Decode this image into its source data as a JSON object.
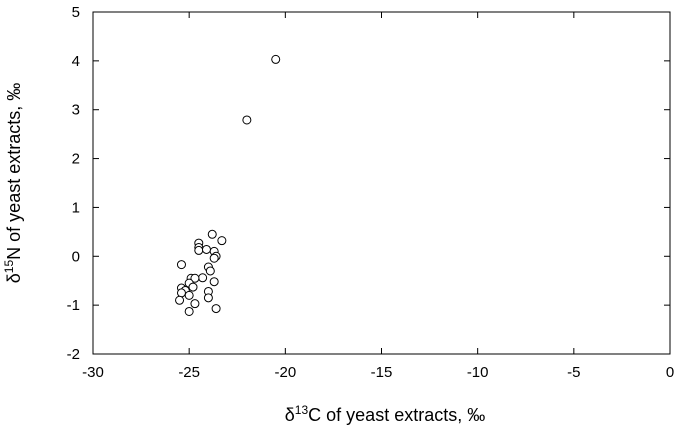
{
  "chart_data": {
    "type": "scatter",
    "xlabel": {
      "pre": "δ",
      "sup": "13",
      "post": "C of yeast extracts, ‰"
    },
    "ylabel": {
      "pre": "δ",
      "sup": "15",
      "post": "N of yeast extracts, ‰"
    },
    "xlim": [
      -30,
      0
    ],
    "ylim": [
      -2,
      5
    ],
    "xticks": [
      -30,
      -25,
      -20,
      -15,
      -10,
      -5,
      0
    ],
    "yticks": [
      -2,
      -1,
      0,
      1,
      2,
      3,
      4,
      5
    ],
    "grid": false,
    "marker": "open-circle",
    "points": [
      {
        "x": -20.5,
        "y": 4.03
      },
      {
        "x": -22.0,
        "y": 2.79
      },
      {
        "x": -23.8,
        "y": 0.45
      },
      {
        "x": -23.3,
        "y": 0.32
      },
      {
        "x": -24.5,
        "y": 0.27
      },
      {
        "x": -24.5,
        "y": 0.18
      },
      {
        "x": -24.5,
        "y": 0.12
      },
      {
        "x": -24.1,
        "y": 0.14
      },
      {
        "x": -23.7,
        "y": 0.1
      },
      {
        "x": -23.6,
        "y": 0.0
      },
      {
        "x": -23.7,
        "y": -0.04
      },
      {
        "x": -25.4,
        "y": -0.17
      },
      {
        "x": -24.0,
        "y": -0.22
      },
      {
        "x": -23.9,
        "y": -0.3
      },
      {
        "x": -24.3,
        "y": -0.44
      },
      {
        "x": -24.9,
        "y": -0.45
      },
      {
        "x": -24.7,
        "y": -0.45
      },
      {
        "x": -23.7,
        "y": -0.52
      },
      {
        "x": -25.0,
        "y": -0.55
      },
      {
        "x": -24.8,
        "y": -0.63
      },
      {
        "x": -25.4,
        "y": -0.65
      },
      {
        "x": -25.2,
        "y": -0.7
      },
      {
        "x": -24.0,
        "y": -0.72
      },
      {
        "x": -25.4,
        "y": -0.75
      },
      {
        "x": -25.0,
        "y": -0.8
      },
      {
        "x": -24.0,
        "y": -0.85
      },
      {
        "x": -25.5,
        "y": -0.9
      },
      {
        "x": -24.7,
        "y": -0.97
      },
      {
        "x": -23.6,
        "y": -1.07
      },
      {
        "x": -25.0,
        "y": -1.13
      }
    ]
  }
}
